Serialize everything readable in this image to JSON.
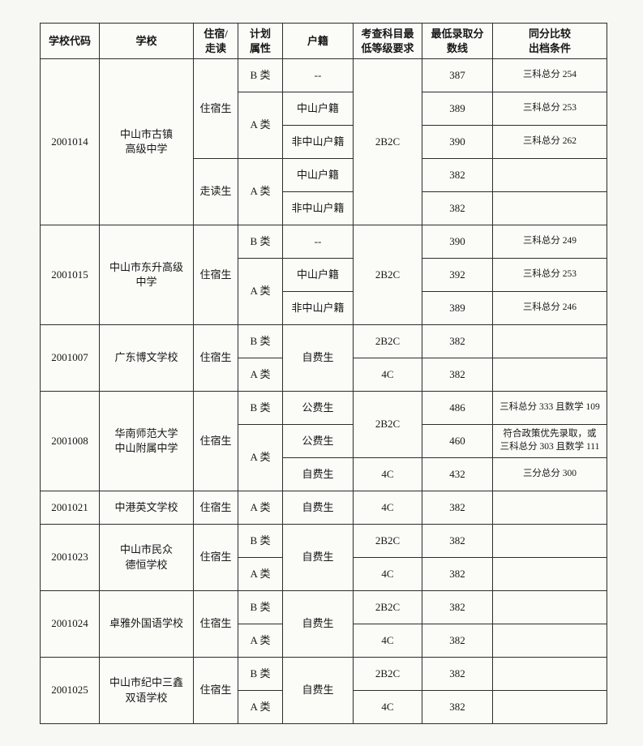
{
  "page": {
    "background": "#f7f7f4",
    "table_background": "#fbfbf8",
    "border_color": "#2c2c2c",
    "text_color": "#171717"
  },
  "table": {
    "columns": [
      {
        "id": "school-code",
        "label": "学校代码",
        "width": 73
      },
      {
        "id": "school-name",
        "label": "学校",
        "width": 116
      },
      {
        "id": "boarding",
        "label": "住宿/\n走读",
        "width": 55
      },
      {
        "id": "plan",
        "label": "计划\n属性",
        "width": 55
      },
      {
        "id": "registration",
        "label": "户籍",
        "width": 87
      },
      {
        "id": "subject-req",
        "label": "考查科目最\n低等级要求",
        "width": 85
      },
      {
        "id": "min-score",
        "label": "最低录取分\n数线",
        "width": 87
      },
      {
        "id": "tiebreak",
        "label": "同分比较\n出档条件",
        "width": 141
      }
    ],
    "rows": [
      {
        "cells": [
          {
            "name": "school-code-cell",
            "text": "2001014",
            "rowspan": 5
          },
          {
            "name": "school-name-cell",
            "text": "中山市古镇\n高级中学",
            "rowspan": 5
          },
          {
            "name": "boarding-type-cell",
            "text": "住宿生",
            "rowspan": 3
          },
          {
            "name": "plan-type-cell",
            "text": "B 类"
          },
          {
            "name": "registration-cell",
            "text": "--"
          },
          {
            "name": "subject-requirement-cell",
            "text": "2B2C",
            "rowspan": 5
          },
          {
            "name": "min-score-cell",
            "text": "387"
          },
          {
            "name": "tiebreak-condition-cell",
            "text": "三科总分 254"
          }
        ]
      },
      {
        "cells": [
          {
            "name": "plan-type-cell",
            "text": "A 类",
            "rowspan": 2
          },
          {
            "name": "registration-cell",
            "text": "中山户籍"
          },
          {
            "name": "min-score-cell",
            "text": "389"
          },
          {
            "name": "tiebreak-condition-cell",
            "text": "三科总分 253"
          }
        ]
      },
      {
        "cells": [
          {
            "name": "registration-cell",
            "text": "非中山户籍"
          },
          {
            "name": "min-score-cell",
            "text": "390"
          },
          {
            "name": "tiebreak-condition-cell",
            "text": "三科总分 262"
          }
        ]
      },
      {
        "cells": [
          {
            "name": "boarding-type-cell",
            "text": "走读生",
            "rowspan": 2
          },
          {
            "name": "plan-type-cell",
            "text": "A 类",
            "rowspan": 2
          },
          {
            "name": "registration-cell",
            "text": "中山户籍"
          },
          {
            "name": "min-score-cell",
            "text": "382"
          },
          {
            "name": "tiebreak-condition-cell",
            "text": ""
          }
        ]
      },
      {
        "cells": [
          {
            "name": "registration-cell",
            "text": "非中山户籍"
          },
          {
            "name": "min-score-cell",
            "text": "382"
          },
          {
            "name": "tiebreak-condition-cell",
            "text": ""
          }
        ]
      },
      {
        "cells": [
          {
            "name": "school-code-cell",
            "text": "2001015",
            "rowspan": 3
          },
          {
            "name": "school-name-cell",
            "text": "中山市东升高级\n中学",
            "rowspan": 3
          },
          {
            "name": "boarding-type-cell",
            "text": "住宿生",
            "rowspan": 3
          },
          {
            "name": "plan-type-cell",
            "text": "B 类"
          },
          {
            "name": "registration-cell",
            "text": "--"
          },
          {
            "name": "subject-requirement-cell",
            "text": "2B2C",
            "rowspan": 3
          },
          {
            "name": "min-score-cell",
            "text": "390"
          },
          {
            "name": "tiebreak-condition-cell",
            "text": "三科总分 249"
          }
        ]
      },
      {
        "cells": [
          {
            "name": "plan-type-cell",
            "text": "A 类",
            "rowspan": 2
          },
          {
            "name": "registration-cell",
            "text": "中山户籍"
          },
          {
            "name": "min-score-cell",
            "text": "392"
          },
          {
            "name": "tiebreak-condition-cell",
            "text": "三科总分 253"
          }
        ]
      },
      {
        "cells": [
          {
            "name": "registration-cell",
            "text": "非中山户籍"
          },
          {
            "name": "min-score-cell",
            "text": "389"
          },
          {
            "name": "tiebreak-condition-cell",
            "text": "三科总分 246"
          }
        ]
      },
      {
        "cells": [
          {
            "name": "school-code-cell",
            "text": "2001007",
            "rowspan": 2
          },
          {
            "name": "school-name-cell",
            "text": "广东博文学校",
            "rowspan": 2
          },
          {
            "name": "boarding-type-cell",
            "text": "住宿生",
            "rowspan": 2
          },
          {
            "name": "plan-type-cell",
            "text": "B 类"
          },
          {
            "name": "registration-cell",
            "text": "自费生",
            "rowspan": 2
          },
          {
            "name": "subject-requirement-cell",
            "text": "2B2C"
          },
          {
            "name": "min-score-cell",
            "text": "382"
          },
          {
            "name": "tiebreak-condition-cell",
            "text": ""
          }
        ]
      },
      {
        "cells": [
          {
            "name": "plan-type-cell",
            "text": "A 类"
          },
          {
            "name": "subject-requirement-cell",
            "text": "4C"
          },
          {
            "name": "min-score-cell",
            "text": "382"
          },
          {
            "name": "tiebreak-condition-cell",
            "text": ""
          }
        ]
      },
      {
        "cells": [
          {
            "name": "school-code-cell",
            "text": "2001008",
            "rowspan": 3
          },
          {
            "name": "school-name-cell",
            "text": "华南师范大学\n中山附属中学",
            "rowspan": 3
          },
          {
            "name": "boarding-type-cell",
            "text": "住宿生",
            "rowspan": 3
          },
          {
            "name": "plan-type-cell",
            "text": "B 类"
          },
          {
            "name": "registration-cell",
            "text": "公费生"
          },
          {
            "name": "subject-requirement-cell",
            "text": "2B2C",
            "rowspan": 2
          },
          {
            "name": "min-score-cell",
            "text": "486"
          },
          {
            "name": "tiebreak-condition-cell",
            "text": "三科总分 333 且数学 109"
          }
        ]
      },
      {
        "cells": [
          {
            "name": "plan-type-cell",
            "text": "A 类",
            "rowspan": 2
          },
          {
            "name": "registration-cell",
            "text": "公费生"
          },
          {
            "name": "min-score-cell",
            "text": "460"
          },
          {
            "name": "tiebreak-condition-cell",
            "text": "符合政策优先录取，或\n三科总分 303 且数学 111"
          }
        ]
      },
      {
        "cells": [
          {
            "name": "registration-cell",
            "text": "自费生"
          },
          {
            "name": "subject-requirement-cell",
            "text": "4C"
          },
          {
            "name": "min-score-cell",
            "text": "432"
          },
          {
            "name": "tiebreak-condition-cell",
            "text": "三分总分 300"
          }
        ]
      },
      {
        "cells": [
          {
            "name": "school-code-cell",
            "text": "2001021"
          },
          {
            "name": "school-name-cell",
            "text": "中港英文学校"
          },
          {
            "name": "boarding-type-cell",
            "text": "住宿生"
          },
          {
            "name": "plan-type-cell",
            "text": "A 类"
          },
          {
            "name": "registration-cell",
            "text": "自费生"
          },
          {
            "name": "subject-requirement-cell",
            "text": "4C"
          },
          {
            "name": "min-score-cell",
            "text": "382"
          },
          {
            "name": "tiebreak-condition-cell",
            "text": ""
          }
        ]
      },
      {
        "cells": [
          {
            "name": "school-code-cell",
            "text": "2001023",
            "rowspan": 2
          },
          {
            "name": "school-name-cell",
            "text": "中山市民众\n德恒学校",
            "rowspan": 2
          },
          {
            "name": "boarding-type-cell",
            "text": "住宿生",
            "rowspan": 2
          },
          {
            "name": "plan-type-cell",
            "text": "B 类"
          },
          {
            "name": "registration-cell",
            "text": "自费生",
            "rowspan": 2
          },
          {
            "name": "subject-requirement-cell",
            "text": "2B2C"
          },
          {
            "name": "min-score-cell",
            "text": "382"
          },
          {
            "name": "tiebreak-condition-cell",
            "text": ""
          }
        ]
      },
      {
        "cells": [
          {
            "name": "plan-type-cell",
            "text": "A 类"
          },
          {
            "name": "subject-requirement-cell",
            "text": "4C"
          },
          {
            "name": "min-score-cell",
            "text": "382"
          },
          {
            "name": "tiebreak-condition-cell",
            "text": ""
          }
        ]
      },
      {
        "cells": [
          {
            "name": "school-code-cell",
            "text": "2001024",
            "rowspan": 2
          },
          {
            "name": "school-name-cell",
            "text": "卓雅外国语学校",
            "rowspan": 2
          },
          {
            "name": "boarding-type-cell",
            "text": "住宿生",
            "rowspan": 2
          },
          {
            "name": "plan-type-cell",
            "text": "B 类"
          },
          {
            "name": "registration-cell",
            "text": "自费生",
            "rowspan": 2
          },
          {
            "name": "subject-requirement-cell",
            "text": "2B2C"
          },
          {
            "name": "min-score-cell",
            "text": "382"
          },
          {
            "name": "tiebreak-condition-cell",
            "text": ""
          }
        ]
      },
      {
        "cells": [
          {
            "name": "plan-type-cell",
            "text": "A 类"
          },
          {
            "name": "subject-requirement-cell",
            "text": "4C"
          },
          {
            "name": "min-score-cell",
            "text": "382"
          },
          {
            "name": "tiebreak-condition-cell",
            "text": ""
          }
        ]
      },
      {
        "cells": [
          {
            "name": "school-code-cell",
            "text": "2001025",
            "rowspan": 2
          },
          {
            "name": "school-name-cell",
            "text": "中山市纪中三鑫\n双语学校",
            "rowspan": 2
          },
          {
            "name": "boarding-type-cell",
            "text": "住宿生",
            "rowspan": 2
          },
          {
            "name": "plan-type-cell",
            "text": "B 类"
          },
          {
            "name": "registration-cell",
            "text": "自费生",
            "rowspan": 2
          },
          {
            "name": "subject-requirement-cell",
            "text": "2B2C"
          },
          {
            "name": "min-score-cell",
            "text": "382"
          },
          {
            "name": "tiebreak-condition-cell",
            "text": ""
          }
        ]
      },
      {
        "cells": [
          {
            "name": "plan-type-cell",
            "text": "A 类"
          },
          {
            "name": "subject-requirement-cell",
            "text": "4C"
          },
          {
            "name": "min-score-cell",
            "text": "382"
          },
          {
            "name": "tiebreak-condition-cell",
            "text": ""
          }
        ]
      }
    ]
  }
}
